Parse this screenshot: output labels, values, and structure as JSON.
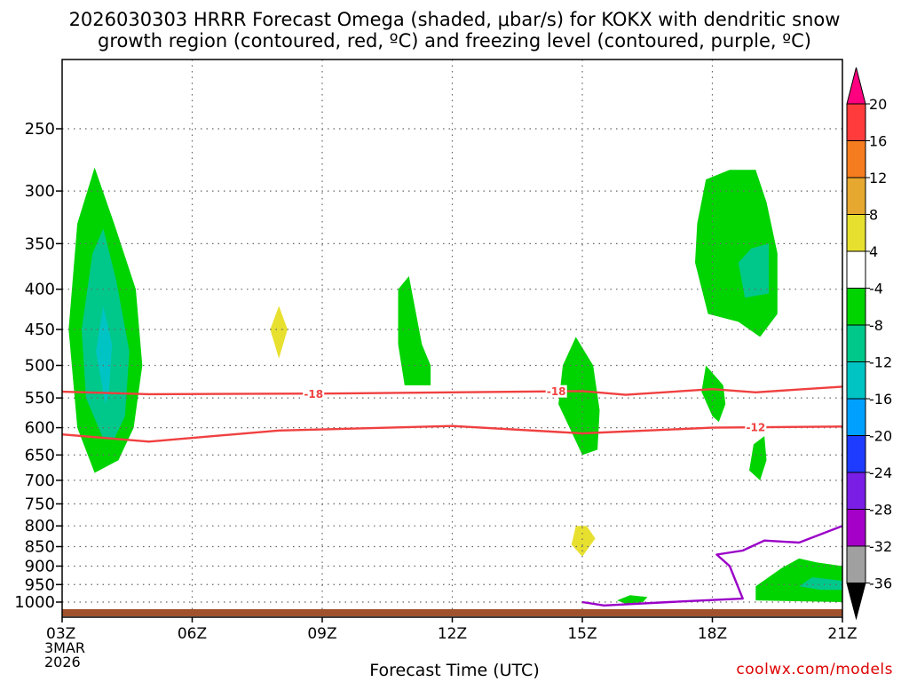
{
  "title": {
    "line1": "2026030303 HRRR Forecast Omega (shaded, μbar/s) for KOKX with dendritic snow",
    "line2": "growth region (contoured, red, ºC) and freezing level (contoured, purple, ºC)"
  },
  "credit": "coolwx.com/models",
  "chart_data": {
    "type": "heatmap",
    "xlabel": "Forecast Time (UTC)",
    "x_ticks": [
      "03Z",
      "06Z",
      "09Z",
      "12Z",
      "15Z",
      "18Z",
      "21Z"
    ],
    "x_hours": [
      3,
      6,
      9,
      12,
      15,
      18,
      21
    ],
    "x_date_label": [
      "3MAR",
      "2026"
    ],
    "y_scale": "log-pressure (hPa), inverted",
    "y_ticks": [
      250,
      300,
      350,
      400,
      450,
      500,
      550,
      600,
      650,
      700,
      750,
      800,
      850,
      900,
      950,
      1000
    ],
    "grid": true,
    "colorbar": {
      "labels": [
        "20",
        "16",
        "12",
        "8",
        "4",
        "-4",
        "-8",
        "-12",
        "-16",
        "-20",
        "-24",
        "-28",
        "-32",
        "-36"
      ],
      "colors": [
        "#ff0080",
        "#ff3b3b",
        "#f57d1f",
        "#e6a82e",
        "#e8e02f",
        "#ffffff",
        "#00d400",
        "#00c88a",
        "#00c4c4",
        "#00a0ff",
        "#1e3cff",
        "#7a1ee6",
        "#a400c8",
        "#a0a0a0",
        "#000000"
      ]
    },
    "omega_regions": [
      {
        "label": "ascent near 04Z, 280-680 hPa",
        "center_hour": 4.0,
        "min_value": -16
      },
      {
        "label": "descent near 08Z, 420-490 hPa",
        "center_hour": 8.0,
        "max_value": 4
      },
      {
        "label": "ascent near 11Z, 385-530 hPa",
        "center_hour": 11.0,
        "min_value": -8
      },
      {
        "label": "ascent near 15Z, 460-650 hPa",
        "center_hour": 15.0,
        "min_value": -8
      },
      {
        "label": "descent near 15Z, 800-870 hPa",
        "center_hour": 15.0,
        "max_value": 4
      },
      {
        "label": "ascent near 18.5Z, 280-460 hPa",
        "center_hour": 18.6,
        "min_value": -12
      },
      {
        "label": "ascent near 18Z, 500-580 hPa",
        "center_hour": 18.0,
        "min_value": -8
      },
      {
        "label": "ascent near 19Z, 610-700 hPa",
        "center_hour": 19.0,
        "min_value": -8
      },
      {
        "label": "ascent near 20Z, 880-1000 hPa",
        "center_hour": 20.3,
        "min_value": -12
      },
      {
        "label": "ascent near 16Z, 990 hPa",
        "center_hour": 16.0,
        "min_value": -8
      }
    ],
    "contours": [
      {
        "name": "-18",
        "color": "#f04040",
        "labels": [
          "-18",
          "-18"
        ],
        "x_hours": [
          3,
          5,
          9,
          12,
          15,
          16,
          18,
          19,
          21
        ],
        "pressure": [
          540,
          544,
          543,
          541,
          539,
          545,
          536,
          541,
          532
        ]
      },
      {
        "name": "-12",
        "color": "#f04040",
        "labels": [
          "-12"
        ],
        "x_hours": [
          3,
          5,
          8,
          12,
          15,
          18,
          21
        ],
        "pressure": [
          612,
          625,
          605,
          597,
          610,
          600,
          598
        ]
      },
      {
        "name": "0",
        "color": "#9a00c8",
        "labels": [],
        "x_hours": [
          15,
          15.5,
          17,
          18.7,
          18.4,
          18.1,
          18.7,
          19.2,
          20,
          21
        ],
        "pressure": [
          1000,
          1010,
          1000,
          990,
          900,
          870,
          860,
          835,
          840,
          800
        ]
      }
    ]
  }
}
